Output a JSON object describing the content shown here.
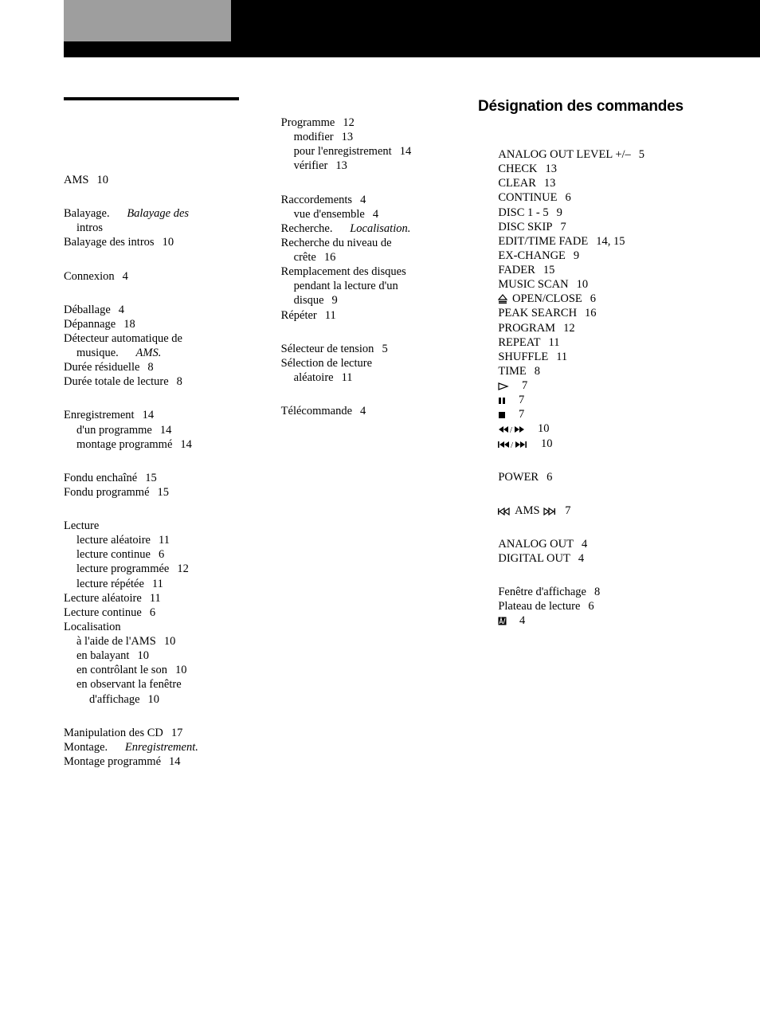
{
  "header_title": "Désignation des commandes",
  "col1": {
    "groups": [
      {
        "rows": [
          {
            "text": "AMS",
            "page": "10"
          }
        ]
      },
      {
        "rows": [
          {
            "text": "Balayage.",
            "ref": "Balayage des"
          },
          {
            "text_indent": "intros"
          },
          {
            "text": "Balayage des intros",
            "page": "10"
          }
        ]
      },
      {
        "rows": [
          {
            "text": "Connexion",
            "page": "4"
          }
        ]
      },
      {
        "rows": [
          {
            "text": "Déballage",
            "page": "4"
          },
          {
            "text": "Dépannage",
            "page": "18"
          },
          {
            "text": "Détecteur automatique de"
          },
          {
            "text_indent": "musique.",
            "ref": "AMS."
          },
          {
            "text": "Durée résiduelle",
            "page": "8"
          },
          {
            "text": "Durée totale de lecture",
            "page": "8"
          }
        ]
      },
      {
        "rows": [
          {
            "text": "Enregistrement",
            "page": "14"
          },
          {
            "text_indent": "d'un programme",
            "page": "14"
          },
          {
            "text_indent": "montage programmé",
            "page": "14"
          }
        ]
      },
      {
        "rows": [
          {
            "text": "Fondu enchaîné",
            "page": "15"
          },
          {
            "text": "Fondu programmé",
            "page": "15"
          }
        ]
      },
      {
        "rows": [
          {
            "text": "Lecture"
          },
          {
            "text_indent": "lecture aléatoire",
            "page": "11"
          },
          {
            "text_indent": "lecture continue",
            "page": "6"
          },
          {
            "text_indent": "lecture programmée",
            "page": "12"
          },
          {
            "text_indent": "lecture répétée",
            "page": "11"
          },
          {
            "text": "Lecture aléatoire",
            "page": "11"
          },
          {
            "text": "Lecture continue",
            "page": "6"
          },
          {
            "text": "Localisation"
          },
          {
            "text_indent": "à l'aide de l'AMS",
            "page": "10"
          },
          {
            "text_indent": "en balayant",
            "page": "10"
          },
          {
            "text_indent": "en contrôlant le son",
            "page": "10"
          },
          {
            "text_indent": "en observant la fenêtre"
          },
          {
            "text_indent2": "d'affichage",
            "page": "10"
          }
        ]
      },
      {
        "rows": [
          {
            "text": "Manipulation des CD",
            "page": "17"
          },
          {
            "text": "Montage.",
            "ref": "Enregistrement."
          },
          {
            "text": "Montage programmé",
            "page": "14"
          }
        ]
      }
    ]
  },
  "col2": {
    "groups": [
      {
        "rows": [
          {
            "text": "Programme",
            "page": "12"
          },
          {
            "text_indent": "modifier",
            "page": "13"
          },
          {
            "text_indent": "pour l'enregistrement",
            "page": "14"
          },
          {
            "text_indent": "vérifier",
            "page": "13"
          }
        ]
      },
      {
        "rows": [
          {
            "text": "Raccordements",
            "page": "4"
          },
          {
            "text_indent": "vue d'ensemble",
            "page": "4"
          },
          {
            "text": "Recherche.",
            "ref": "Localisation."
          },
          {
            "text": "Recherche du niveau de"
          },
          {
            "text_indent": "crête",
            "page": "16"
          },
          {
            "text": "Remplacement des disques"
          },
          {
            "text_indent": "pendant la lecture d'un"
          },
          {
            "text_indent": "disque",
            "page": "9"
          },
          {
            "text": "Répéter",
            "page": "11"
          }
        ]
      },
      {
        "rows": [
          {
            "text": "Sélecteur de tension",
            "page": "5"
          },
          {
            "text": "Sélection de lecture"
          },
          {
            "text_indent": "aléatoire",
            "page": "11"
          }
        ]
      },
      {
        "rows": [
          {
            "text": "Télécommande",
            "page": "4"
          }
        ]
      }
    ]
  },
  "col3": {
    "groups": [
      {
        "rows": [
          {
            "text": "ANALOG OUT LEVEL +/–",
            "page": "5"
          },
          {
            "text": "CHECK",
            "page": "13"
          },
          {
            "text": "CLEAR",
            "page": "13"
          },
          {
            "text": "CONTINUE",
            "page": "6"
          },
          {
            "text": "DISC 1 - 5",
            "page": "9"
          },
          {
            "text": "DISC SKIP",
            "page": "7"
          },
          {
            "text": "EDIT/TIME FADE",
            "page": "14, 15"
          },
          {
            "text": "EX-CHANGE",
            "page": "9"
          },
          {
            "text": "FADER",
            "page": "15"
          },
          {
            "text": "MUSIC SCAN",
            "page": "10"
          },
          {
            "icon": "eject",
            "text": "OPEN/CLOSE",
            "page": "6"
          },
          {
            "text": "PEAK SEARCH",
            "page": "16"
          },
          {
            "text": "PROGRAM",
            "page": "12"
          },
          {
            "text": "REPEAT",
            "page": "11"
          },
          {
            "text": "SHUFFLE",
            "page": "11"
          },
          {
            "text": "TIME",
            "page": "8"
          },
          {
            "icon": "play",
            "page": "7"
          },
          {
            "icon": "pause",
            "page": "7"
          },
          {
            "icon": "stop",
            "page": "7"
          },
          {
            "icon": "rewff",
            "page": "10"
          },
          {
            "icon": "prevnext",
            "page": "10"
          }
        ]
      },
      {
        "rows": [
          {
            "text": "POWER",
            "page": "6"
          }
        ]
      },
      {
        "rows": [
          {
            "icon": "ams",
            "text": "AMS",
            "post_icon": "ams_r",
            "page": "7"
          }
        ]
      },
      {
        "rows": [
          {
            "text": "ANALOG OUT",
            "page": "4"
          },
          {
            "text": "DIGITAL OUT",
            "page": "4"
          }
        ]
      },
      {
        "rows": [
          {
            "text": "Fenêtre d'affichage",
            "page": "8"
          },
          {
            "text": "Plateau de lecture",
            "page": "6"
          },
          {
            "icon": "remote",
            "page": "4"
          }
        ]
      }
    ]
  }
}
